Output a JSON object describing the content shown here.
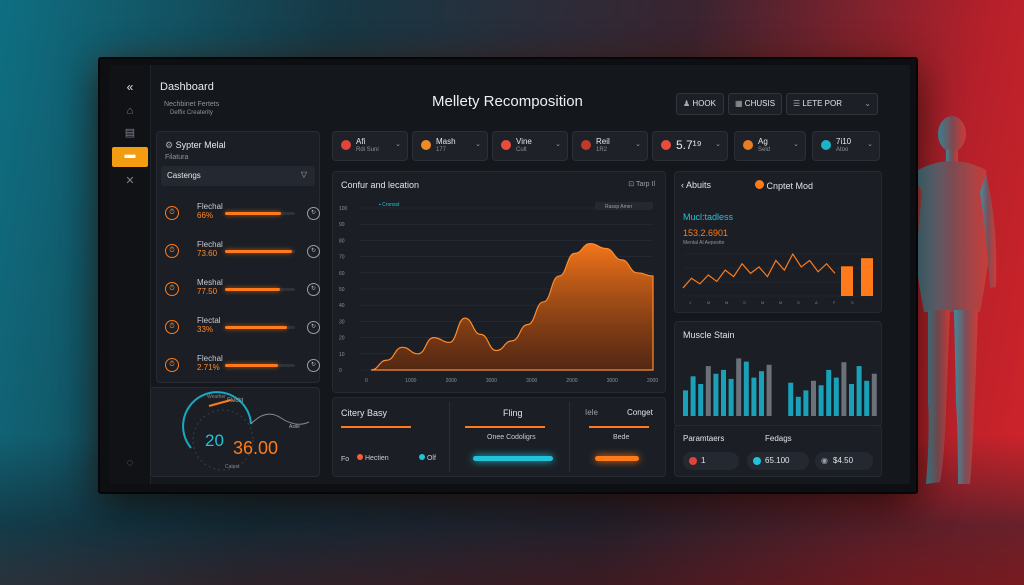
{
  "app": {
    "back_icon": "double-chevron-left-icon",
    "section": "Dashboard",
    "subtitle1": "Nechbinet Fertets",
    "subtitle2": "Deffix Createrity",
    "title": "Mellety Recomposition"
  },
  "header_buttons": [
    {
      "label": "HOOK",
      "icon": "person-icon"
    },
    {
      "label": "CHUSIS",
      "icon": "grid-icon"
    },
    {
      "label": "LETE POR",
      "icon": "list-icon"
    }
  ],
  "metric_chips": [
    {
      "name": "Afi",
      "sub": "Rdi Suni",
      "color": "#e0443b"
    },
    {
      "name": "Mash",
      "sub": "177",
      "color": "#f08a24"
    },
    {
      "name": "Vine",
      "sub": "Cult",
      "color": "#e74c3c"
    },
    {
      "name": "Reil",
      "sub": "1R2",
      "color": "#e74c3c"
    },
    {
      "name": "5.7¹⁹",
      "sub": "",
      "color": "#e74c3c"
    },
    {
      "name": "Ag",
      "sub": "Seld",
      "color": "#e67e22"
    },
    {
      "name": "7i10",
      "sub": "Atoo",
      "color": "#1bb3c6"
    }
  ],
  "left_panel": {
    "title": "Sypter Melal",
    "subtitle": "Filatura",
    "dropdown": "Castengs",
    "rows": [
      {
        "label": "Flechal",
        "value": "66%",
        "progress": 0.8
      },
      {
        "label": "Flechal",
        "value": "73.60",
        "progress": 0.95
      },
      {
        "label": "Meshal",
        "value": "77.50",
        "progress": 0.78
      },
      {
        "label": "Flectal",
        "value": "33%",
        "progress": 0.88
      },
      {
        "label": "Flechal",
        "value": "2.71%",
        "progress": 0.75
      }
    ],
    "gauge": {
      "value": "20",
      "score": "36.00",
      "top_label": "Flecht",
      "small1": "Weather",
      "small2": "Asile",
      "small3": "Catest"
    }
  },
  "main_chart": {
    "title": "Confur and lecation",
    "action": "Tarp Il",
    "legend": "Cronsst",
    "tag": "Rassp Amer",
    "chart_data": {
      "type": "area",
      "title": "Confur and lecation",
      "x_ticks": [
        "0",
        "1000",
        "2000",
        "3000",
        "3000",
        "2000",
        "3000",
        "2000"
      ],
      "y_ticks": [
        "0",
        "10",
        "20",
        "30",
        "40",
        "50",
        "60",
        "70",
        "80",
        "90",
        "100"
      ],
      "ylim": [
        0,
        100
      ],
      "values": [
        0,
        6,
        14,
        10,
        20,
        17,
        32,
        22,
        12,
        18,
        28,
        42,
        58,
        72,
        78,
        75,
        68,
        60,
        58
      ]
    }
  },
  "bottom_panel": {
    "col1": {
      "title": "Citery Basy"
    },
    "col2": {
      "title": "Fling",
      "caption": "Onee Codoligrs"
    },
    "col3": {
      "title": "Iele",
      "title2": "Conget",
      "caption": "Bede"
    },
    "legend": [
      {
        "label": "Fo"
      },
      {
        "label": "Hectien",
        "color": "#ff5a3a"
      },
      {
        "label": "Olf",
        "color": "#22c3d8"
      }
    ]
  },
  "right_top": {
    "tab1": "Abuits",
    "tab2": "Cnptet Mod",
    "metric_title": "Mucl:tadless",
    "metric_value": "153.2.6901",
    "metric_sub": "Mental Al Aepestte",
    "chart_data": {
      "type": "line",
      "values": [
        10,
        22,
        15,
        26,
        18,
        32,
        24,
        40,
        28,
        36,
        24,
        44,
        32,
        52,
        36,
        44,
        30,
        40,
        28
      ],
      "bars": [
        0.55,
        0.7
      ]
    }
  },
  "right_mid": {
    "title": "Muscle Stain",
    "chart_data": {
      "type": "bar",
      "values": [
        0.4,
        0.62,
        0.5,
        0.78,
        0.66,
        0.72,
        0.58,
        0.9,
        0.85,
        0.6,
        0.7,
        0.8,
        0.52,
        0.3,
        0.4,
        0.55,
        0.48,
        0.72,
        0.6,
        0.84,
        0.5,
        0.78,
        0.55,
        0.66
      ]
    }
  },
  "right_bottom": {
    "col1": {
      "title": "Paramtaers",
      "value": "1"
    },
    "col2": {
      "title": "Fedags",
      "value": "65.100"
    },
    "col3": {
      "value": "$4.50"
    }
  },
  "colors": {
    "accent": "#ff7a1a",
    "teal": "#22c3d8",
    "red": "#e0443b"
  }
}
